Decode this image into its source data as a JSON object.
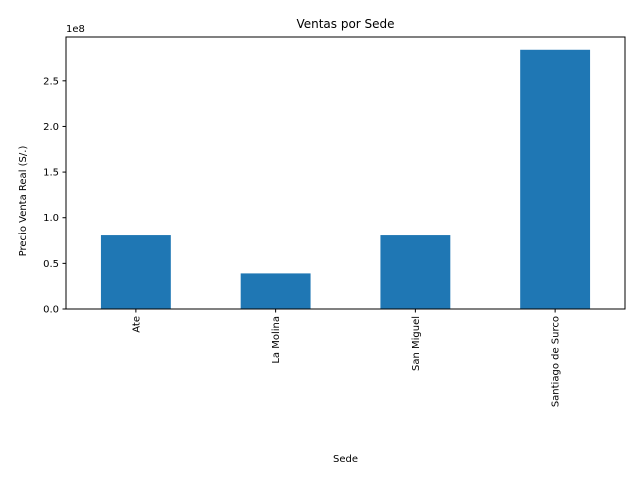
{
  "chart_data": {
    "type": "bar",
    "title": "Ventas por Sede",
    "xlabel": "Sede",
    "ylabel": "Precio Venta Real (S/.)",
    "y_offset_label": "1e8",
    "categories": [
      "Ate",
      "La Molina",
      "San Miguel",
      "Santiago de Surco"
    ],
    "values": [
      81000000,
      39000000,
      81000000,
      284000000
    ],
    "ylim": [
      0,
      298000000
    ],
    "yticks": [
      0,
      50000000,
      100000000,
      150000000,
      200000000,
      250000000
    ],
    "ytick_labels": [
      "0.0",
      "0.5",
      "1.0",
      "1.5",
      "2.0",
      "2.5"
    ],
    "bar_color": "#1f77b4",
    "grid": false,
    "legend": "none"
  }
}
